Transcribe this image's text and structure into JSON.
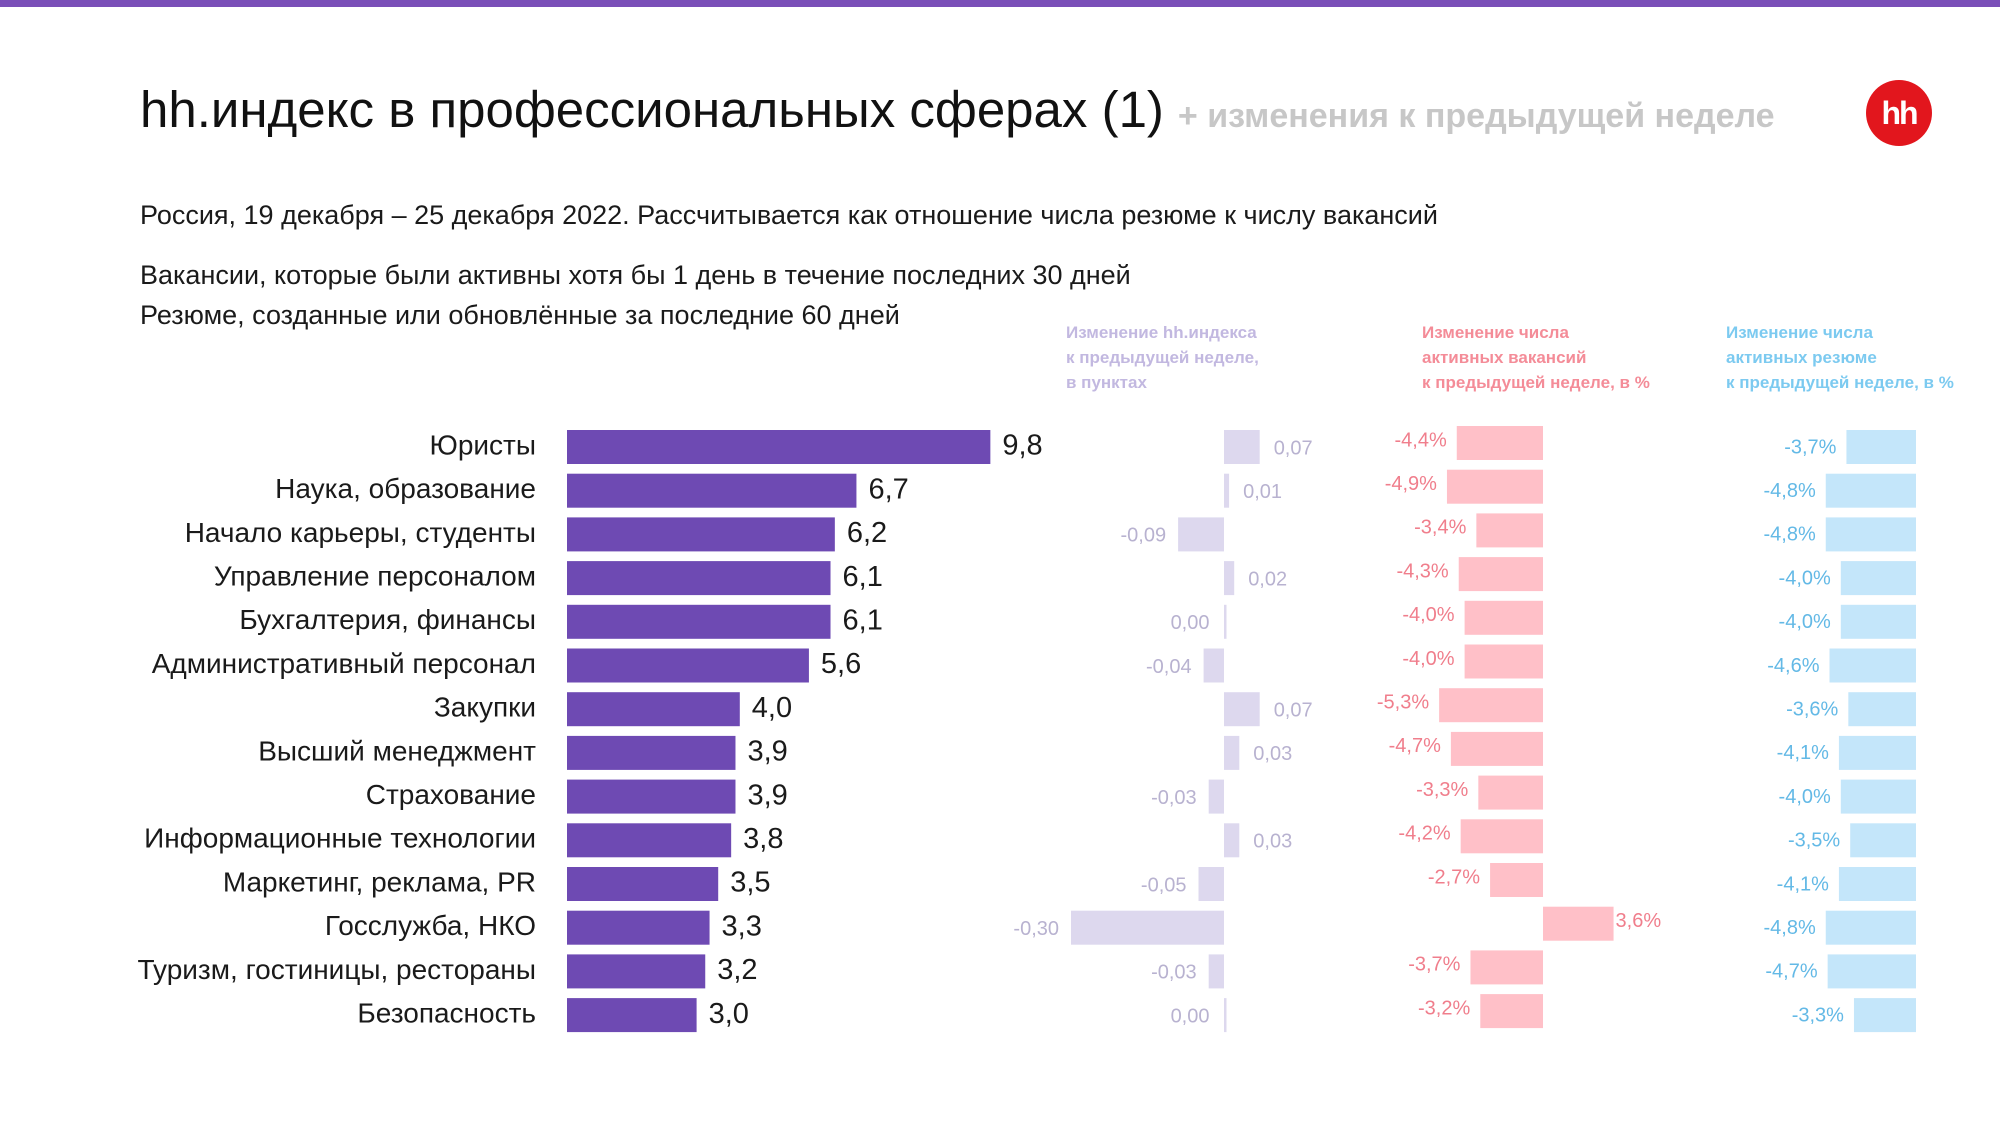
{
  "header": {
    "title": "hh.индекс в профессиональных сферах (1)",
    "title_suffix": "+ изменения к предыдущей неделе",
    "logo_text": "hh"
  },
  "subtitle": {
    "line1": "Россия, 19 декабря – 25 декабря 2022. Рассчитывается как отношение числа резюме к числу вакансий",
    "line2": "Вакансии, которые были активны хотя бы 1 день в течение последних 30 дней",
    "line3": "Резюме, созданные или обновлённые за последние 60 дней"
  },
  "columns": {
    "index_change": "Изменение hh.индекса\nк предыдущей неделе,\nв пунктах",
    "vacancies_change": "Изменение числа\nактивных вакансий\nк предыдущей неделе, в %",
    "resumes_change": "Изменение числа\nактивных резюме\nк предыдущей неделе, в %"
  },
  "colors": {
    "main_bar": "#6e4ab3",
    "index_change_bar": "#ddd8ee",
    "index_change_text": "#b8b2d0",
    "vacancies_bar": "#ffc0c8",
    "vacancies_text": "#f07e8c",
    "resumes_bar": "#c4e6fa",
    "resumes_text": "#63b9e6",
    "brand": "#e2161d",
    "accent_rule": "#7a4fb8"
  },
  "chart_data": {
    "type": "bar",
    "orientation": "horizontal",
    "categories": [
      "Юристы",
      "Наука, образование",
      "Начало карьеры, студенты",
      "Управление персоналом",
      "Бухгалтерия, финансы",
      "Административный персонал",
      "Закупки",
      "Высший менеджмент",
      "Страхование",
      "Информационные технологии",
      "Маркетинг, реклама, PR",
      "Госслужба, НКО",
      "Туризм, гостиницы, рестораны",
      "Безопасность"
    ],
    "series": [
      {
        "values": [
          9.8,
          6.7,
          6.2,
          6.1,
          6.1,
          5.6,
          4.0,
          3.9,
          3.9,
          3.8,
          3.5,
          3.3,
          3.2,
          3.0
        ],
        "labels": [
          "9,8",
          "6,7",
          "6,2",
          "6,1",
          "6,1",
          "5,6",
          "4,0",
          "3,9",
          "3,9",
          "3,8",
          "3,5",
          "3,3",
          "3,2",
          "3,0"
        ]
      },
      {
        "values": [
          0.07,
          0.01,
          -0.09,
          0.02,
          0.0,
          -0.04,
          0.07,
          0.03,
          -0.03,
          0.03,
          -0.05,
          -0.3,
          -0.03,
          0.0
        ],
        "labels": [
          "0,07",
          "0,01",
          "-0,09",
          "0,02",
          "0,00",
          "-0,04",
          "0,07",
          "0,03",
          "-0,03",
          "0,03",
          "-0,05",
          "-0,30",
          "-0,03",
          "0,00"
        ]
      },
      {
        "values": [
          -4.4,
          -4.9,
          -3.4,
          -4.3,
          -4.0,
          -4.0,
          -5.3,
          -4.7,
          -3.3,
          -4.2,
          -2.7,
          3.6,
          -3.7,
          -3.2
        ],
        "labels": [
          "-4,4%",
          "-4,9%",
          "-3,4%",
          "-4,3%",
          "-4,0%",
          "-4,0%",
          "-5,3%",
          "-4,7%",
          "-3,3%",
          "-4,2%",
          "-2,7%",
          "3,6%",
          "-3,7%",
          "-3,2%"
        ]
      },
      {
        "values": [
          -3.7,
          -4.8,
          -4.8,
          -4.0,
          -4.0,
          -4.6,
          -3.6,
          -4.1,
          -4.0,
          -3.5,
          -4.1,
          -4.8,
          -4.7,
          -3.3
        ],
        "labels": [
          "-3,7%",
          "-4,8%",
          "-4,8%",
          "-4,0%",
          "-4,0%",
          "-4,6%",
          "-3,6%",
          "-4,1%",
          "-4,0%",
          "-3,5%",
          "-4,1%",
          "-4,8%",
          "-4,7%",
          "-3,3%"
        ]
      }
    ]
  }
}
